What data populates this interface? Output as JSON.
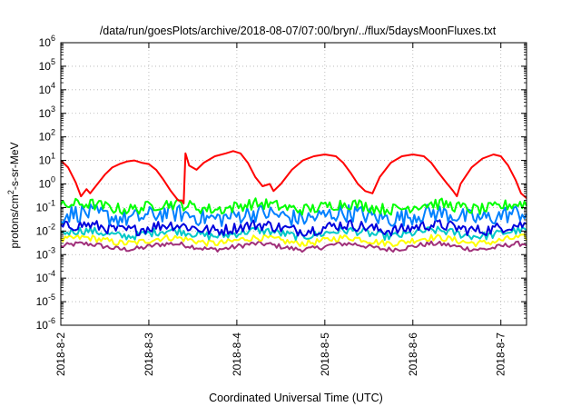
{
  "chart_data": {
    "type": "line",
    "title": "/data/run/goesPlots/archive/2018-08-07/07:00/bryn/../flux/5daysMoonFluxes.txt",
    "xlabel": "Coordinated Universal Time (UTC)",
    "ylabel": {
      "prefix": "protons/cm",
      "sup": "2",
      "suffix": "-s-sr-MeV"
    },
    "x_range": [
      "2018-8-2 00:00",
      "2018-8-7 07:00"
    ],
    "x_ticks": [
      "2018-8-2",
      "2018-8-3",
      "2018-8-4",
      "2018-8-5",
      "2018-8-6",
      "2018-8-7"
    ],
    "y_scale": "log",
    "y_range": [
      1e-06,
      1000000.0
    ],
    "y_ticks": [
      {
        "base": "10",
        "exp": "-6"
      },
      {
        "base": "10",
        "exp": "-5"
      },
      {
        "base": "10",
        "exp": "-4"
      },
      {
        "base": "10",
        "exp": "-3"
      },
      {
        "base": "10",
        "exp": "-2"
      },
      {
        "base": "10",
        "exp": "-1"
      },
      {
        "base": "10",
        "exp": "0"
      },
      {
        "base": "10",
        "exp": "1"
      },
      {
        "base": "10",
        "exp": "2"
      },
      {
        "base": "10",
        "exp": "3"
      },
      {
        "base": "10",
        "exp": "4"
      },
      {
        "base": "10",
        "exp": "5"
      },
      {
        "base": "10",
        "exp": "6"
      }
    ],
    "grid": true,
    "legend": "none",
    "series": [
      {
        "color": "#ff0000",
        "points": [
          [
            "2018-8-2 00:00",
            10
          ],
          [
            "2018-8-2 02:00",
            5
          ],
          [
            "2018-8-2 04:00",
            1.2
          ],
          [
            "2018-8-2 05:30",
            0.3
          ],
          [
            "2018-8-2 07:00",
            0.6
          ],
          [
            "2018-8-2 08:00",
            0.4
          ],
          [
            "2018-8-2 10:00",
            1
          ],
          [
            "2018-8-2 12:00",
            2.5
          ],
          [
            "2018-8-2 14:00",
            5
          ],
          [
            "2018-8-2 16:00",
            7
          ],
          [
            "2018-8-2 18:00",
            9
          ],
          [
            "2018-8-2 20:00",
            10
          ],
          [
            "2018-8-2 22:00",
            8
          ],
          [
            "2018-8-3 00:00",
            7
          ],
          [
            "2018-8-3 02:00",
            4
          ],
          [
            "2018-8-3 04:00",
            1.5
          ],
          [
            "2018-8-3 06:00",
            0.5
          ],
          [
            "2018-8-3 08:00",
            0.2
          ],
          [
            "2018-8-3 09:00",
            0.2
          ],
          [
            "2018-8-3 09:30",
            0.15
          ],
          [
            "2018-8-3 10:00",
            20
          ],
          [
            "2018-8-3 11:00",
            6
          ],
          [
            "2018-8-3 13:00",
            4
          ],
          [
            "2018-8-3 15:00",
            8
          ],
          [
            "2018-8-3 18:00",
            15
          ],
          [
            "2018-8-3 21:00",
            20
          ],
          [
            "2018-8-3 23:00",
            25
          ],
          [
            "2018-8-4 01:00",
            20
          ],
          [
            "2018-8-4 03:00",
            8
          ],
          [
            "2018-8-4 05:00",
            2
          ],
          [
            "2018-8-4 07:00",
            0.8
          ],
          [
            "2018-8-4 09:00",
            1
          ],
          [
            "2018-8-4 10:00",
            0.5
          ],
          [
            "2018-8-4 12:00",
            1
          ],
          [
            "2018-8-4 15:00",
            4
          ],
          [
            "2018-8-4 18:00",
            10
          ],
          [
            "2018-8-4 21:00",
            15
          ],
          [
            "2018-8-5 00:00",
            18
          ],
          [
            "2018-8-5 03:00",
            15
          ],
          [
            "2018-8-5 05:00",
            8
          ],
          [
            "2018-8-5 07:00",
            3
          ],
          [
            "2018-8-5 09:00",
            1
          ],
          [
            "2018-8-5 11:00",
            0.5
          ],
          [
            "2018-8-5 13:00",
            0.4
          ],
          [
            "2018-8-5 15:00",
            2
          ],
          [
            "2018-8-5 18:00",
            8
          ],
          [
            "2018-8-5 21:00",
            15
          ],
          [
            "2018-8-6 00:00",
            18
          ],
          [
            "2018-8-6 03:00",
            15
          ],
          [
            "2018-8-6 05:00",
            8
          ],
          [
            "2018-8-6 07:00",
            3
          ],
          [
            "2018-8-6 09:00",
            1.2
          ],
          [
            "2018-8-6 11:00",
            0.5
          ],
          [
            "2018-8-6 12:00",
            0.3
          ],
          [
            "2018-8-6 13:00",
            1
          ],
          [
            "2018-8-6 16:00",
            5
          ],
          [
            "2018-8-6 19:00",
            12
          ],
          [
            "2018-8-6 22:00",
            18
          ],
          [
            "2018-8-7 00:00",
            15
          ],
          [
            "2018-8-7 02:00",
            6
          ],
          [
            "2018-8-7 04:00",
            1.5
          ],
          [
            "2018-8-7 05:30",
            0.4
          ],
          [
            "2018-8-7 07:00",
            0.25
          ]
        ]
      },
      {
        "color": "#00ff00",
        "level": 0.11,
        "spread": 0.35
      },
      {
        "color": "#0080ff",
        "level": 0.045,
        "spread": 0.55
      },
      {
        "color": "#0000dd",
        "level": 0.014,
        "spread": 0.35
      },
      {
        "color": "#00c8c8",
        "level": 0.008,
        "spread": 0.25
      },
      {
        "color": "#ffff00",
        "level": 0.004,
        "spread": 0.2
      },
      {
        "color": "#a0307a",
        "level": 0.0022,
        "spread": 0.15
      }
    ]
  }
}
